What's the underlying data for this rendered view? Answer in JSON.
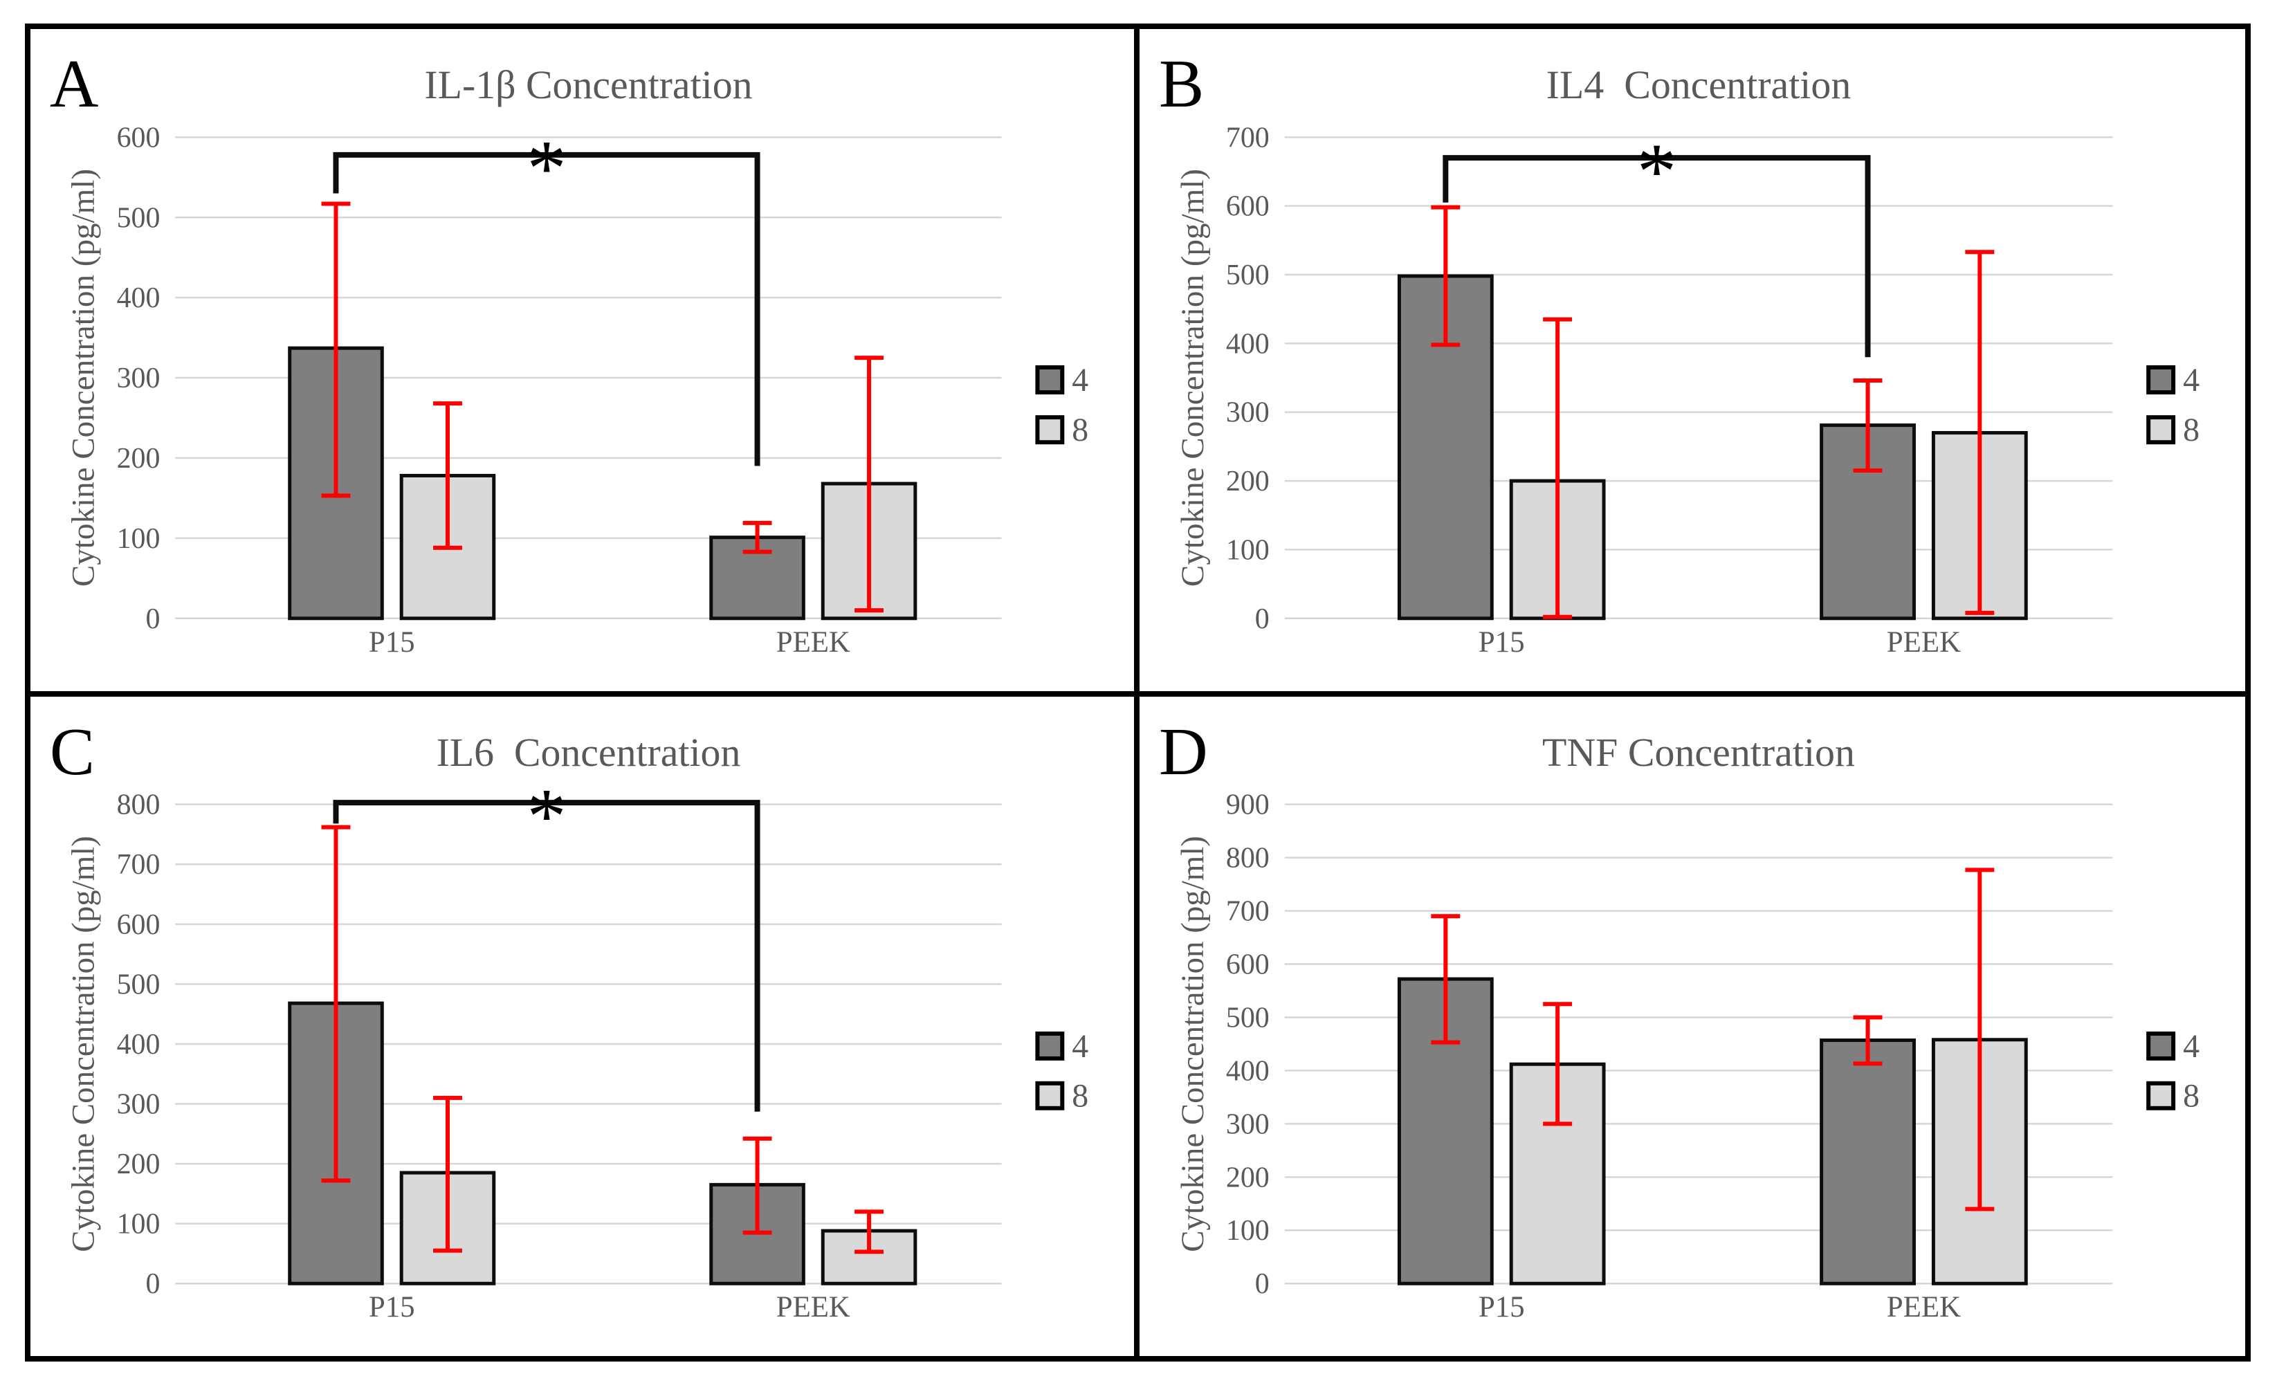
{
  "figure": {
    "background": "#ffffff",
    "border_color": "#000000",
    "panels_order": [
      "A",
      "B",
      "C",
      "D"
    ]
  },
  "colors": {
    "series_4_fill": "#7f7f7f",
    "series_8_fill": "#d9d9d9",
    "bar_border": "#0d0d0d",
    "error_bar": "#ff0000",
    "gridline": "#d6d6d6",
    "text_gray": "#595959",
    "bracket": "#0d0d0d",
    "star": "#000000"
  },
  "legend": {
    "items": [
      {
        "label": "4",
        "fill": "#7f7f7f"
      },
      {
        "label": "8",
        "fill": "#d9d9d9"
      }
    ]
  },
  "chart_data": [
    {
      "panel_label": "A",
      "type": "bar",
      "title": "IL-1β Concentration",
      "ylabel": "Cytokine Concentration (pg/ml)",
      "xlabel": "",
      "ylim": [
        0,
        600
      ],
      "ytick_step": 100,
      "grid": true,
      "legend_position": "right",
      "categories": [
        "P15",
        "PEEK"
      ],
      "series": [
        {
          "name": "4",
          "fill": "#7f7f7f",
          "values": [
            337,
            101
          ],
          "err_min": [
            153,
            83
          ],
          "err_max": [
            517,
            119
          ]
        },
        {
          "name": "8",
          "fill": "#d9d9d9",
          "values": [
            178,
            168
          ],
          "err_min": [
            88,
            10
          ],
          "err_max": [
            268,
            325
          ]
        }
      ],
      "significance": {
        "label": "*",
        "from": {
          "category": "P15",
          "series": "4"
        },
        "to": {
          "category": "PEEK",
          "series": "4"
        },
        "bracket_y": 578,
        "left_drop_to": 530,
        "right_drop_to": 190
      }
    },
    {
      "panel_label": "B",
      "type": "bar",
      "title": "IL4  Concentration",
      "ylabel": "Cytokine Concentration (pg/ml)",
      "xlabel": "",
      "ylim": [
        0,
        700
      ],
      "ytick_step": 100,
      "grid": true,
      "legend_position": "right",
      "categories": [
        "P15",
        "PEEK"
      ],
      "series": [
        {
          "name": "4",
          "fill": "#7f7f7f",
          "values": [
            498,
            281
          ],
          "err_min": [
            398,
            215
          ],
          "err_max": [
            598,
            346
          ]
        },
        {
          "name": "8",
          "fill": "#d9d9d9",
          "values": [
            200,
            270
          ],
          "err_min": [
            2,
            8
          ],
          "err_max": [
            435,
            533
          ]
        }
      ],
      "significance": {
        "label": "*",
        "from": {
          "category": "P15",
          "series": "4"
        },
        "to": {
          "category": "PEEK",
          "series": "4"
        },
        "bracket_y": 670,
        "left_drop_to": 605,
        "right_drop_to": 380
      }
    },
    {
      "panel_label": "C",
      "type": "bar",
      "title": "IL6  Concentration",
      "ylabel": "Cytokine Concentration (pg/ml)",
      "xlabel": "",
      "ylim": [
        0,
        800
      ],
      "ytick_step": 100,
      "grid": true,
      "legend_position": "right",
      "categories": [
        "P15",
        "PEEK"
      ],
      "series": [
        {
          "name": "4",
          "fill": "#7f7f7f",
          "values": [
            468,
            165
          ],
          "err_min": [
            172,
            85
          ],
          "err_max": [
            762,
            242
          ]
        },
        {
          "name": "8",
          "fill": "#d9d9d9",
          "values": [
            185,
            88
          ],
          "err_min": [
            55,
            53
          ],
          "err_max": [
            310,
            120
          ]
        }
      ],
      "significance": {
        "label": "*",
        "from": {
          "category": "P15",
          "series": "4"
        },
        "to": {
          "category": "PEEK",
          "series": "4"
        },
        "bracket_y": 803,
        "left_drop_to": 768,
        "right_drop_to": 287
      }
    },
    {
      "panel_label": "D",
      "type": "bar",
      "title": "TNF Concentration",
      "ylabel": "Cytokine Concentration (pg/ml)",
      "xlabel": "",
      "ylim": [
        0,
        900
      ],
      "ytick_step": 100,
      "grid": true,
      "legend_position": "right",
      "categories": [
        "P15",
        "PEEK"
      ],
      "series": [
        {
          "name": "4",
          "fill": "#7f7f7f",
          "values": [
            572,
            457
          ],
          "err_min": [
            453,
            413
          ],
          "err_max": [
            690,
            500
          ]
        },
        {
          "name": "8",
          "fill": "#d9d9d9",
          "values": [
            412,
            458
          ],
          "err_min": [
            300,
            140
          ],
          "err_max": [
            525,
            777
          ]
        }
      ],
      "significance": null
    }
  ]
}
